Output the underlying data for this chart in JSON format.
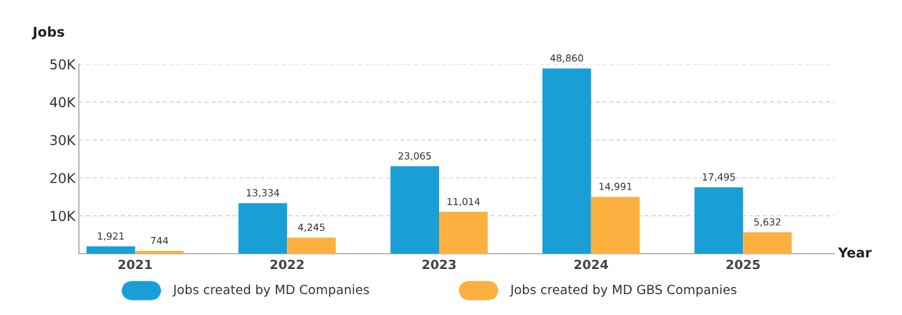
{
  "chart_data": {
    "type": "bar",
    "xlabel": "Year",
    "ylabel": "Jobs",
    "categories": [
      "2021",
      "2022",
      "2023",
      "2024",
      "2025"
    ],
    "series": [
      {
        "name": "Jobs created by MD Companies",
        "color": "#1a9ed6",
        "values": [
          1921,
          13334,
          23065,
          48860,
          17495
        ],
        "value_labels": [
          "1,921",
          "13,334",
          "23,065",
          "48,860",
          "17,495"
        ]
      },
      {
        "name": "Jobs created by MD GBS Companies",
        "color": "#fbb040",
        "values": [
          744,
          4245,
          11014,
          14991,
          5632
        ],
        "value_labels": [
          "744",
          "4,245",
          "11,014",
          "14,991",
          "5,632"
        ]
      }
    ],
    "ylim": [
      0,
      50000
    ],
    "yticks": [
      {
        "value": 10000,
        "label": "10K"
      },
      {
        "value": 20000,
        "label": "20K"
      },
      {
        "value": 30000,
        "label": "30K"
      },
      {
        "value": 40000,
        "label": "40K"
      },
      {
        "value": 50000,
        "label": "50K"
      }
    ],
    "grid": "y",
    "legend": "bottom"
  }
}
